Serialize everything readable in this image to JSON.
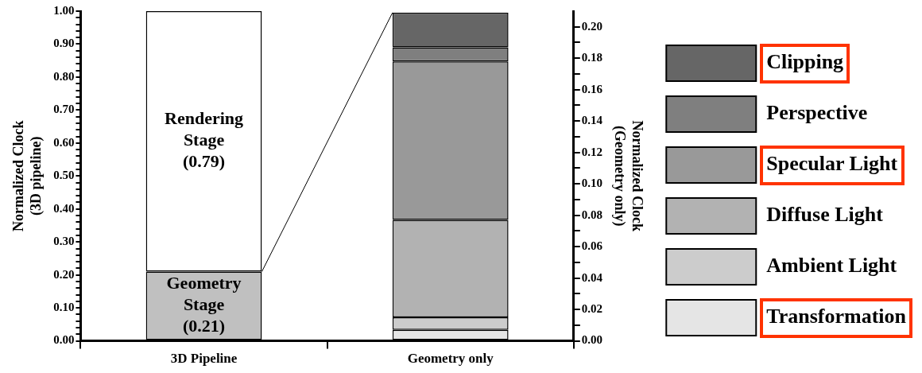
{
  "chart_data": {
    "type": "bar",
    "stacked": true,
    "legend": "right",
    "categories": [
      "3D Pipeline",
      "Geometry only"
    ],
    "ylabel": "Normalized Clock\n(3D pipeline)",
    "y2label": "Normalized Clock\n(Geometry only)",
    "ylim": [
      0,
      1
    ],
    "y2lim": [
      0,
      0.21
    ],
    "yticks": [
      {
        "value": 0,
        "label": "0.00"
      },
      {
        "value": 0.02,
        "label": null
      },
      {
        "value": 0.04,
        "label": null
      },
      {
        "value": 0.06,
        "label": null
      },
      {
        "value": 0.08,
        "label": null
      },
      {
        "value": 0.1,
        "label": "0.10"
      },
      {
        "value": 0.12,
        "label": null
      },
      {
        "value": 0.14,
        "label": null
      },
      {
        "value": 0.16,
        "label": null
      },
      {
        "value": 0.18,
        "label": null
      },
      {
        "value": 0.2,
        "label": "0.20"
      },
      {
        "value": 0.22,
        "label": null
      },
      {
        "value": 0.24,
        "label": null
      },
      {
        "value": 0.26,
        "label": null
      },
      {
        "value": 0.28,
        "label": null
      },
      {
        "value": 0.3,
        "label": "0.30"
      },
      {
        "value": 0.32,
        "label": null
      },
      {
        "value": 0.34,
        "label": null
      },
      {
        "value": 0.36,
        "label": null
      },
      {
        "value": 0.38,
        "label": null
      },
      {
        "value": 0.4,
        "label": "0.40"
      },
      {
        "value": 0.42,
        "label": null
      },
      {
        "value": 0.44,
        "label": null
      },
      {
        "value": 0.46,
        "label": null
      },
      {
        "value": 0.48,
        "label": null
      },
      {
        "value": 0.5,
        "label": "0.50"
      },
      {
        "value": 0.52,
        "label": null
      },
      {
        "value": 0.54,
        "label": null
      },
      {
        "value": 0.56,
        "label": null
      },
      {
        "value": 0.58,
        "label": null
      },
      {
        "value": 0.6,
        "label": "0.60"
      },
      {
        "value": 0.62,
        "label": null
      },
      {
        "value": 0.64,
        "label": null
      },
      {
        "value": 0.66,
        "label": null
      },
      {
        "value": 0.68,
        "label": null
      },
      {
        "value": 0.7,
        "label": "0.70"
      },
      {
        "value": 0.72,
        "label": null
      },
      {
        "value": 0.74,
        "label": null
      },
      {
        "value": 0.76,
        "label": null
      },
      {
        "value": 0.78,
        "label": null
      },
      {
        "value": 0.8,
        "label": "0.80"
      },
      {
        "value": 0.82,
        "label": null
      },
      {
        "value": 0.84,
        "label": null
      },
      {
        "value": 0.86,
        "label": null
      },
      {
        "value": 0.88,
        "label": null
      },
      {
        "value": 0.9,
        "label": "0.90"
      },
      {
        "value": 0.92,
        "label": null
      },
      {
        "value": 0.94,
        "label": null
      },
      {
        "value": 0.96,
        "label": null
      },
      {
        "value": 0.98,
        "label": null
      },
      {
        "value": 1,
        "label": "1.00"
      }
    ],
    "y2ticks": [
      {
        "value": 0,
        "label": "0.00"
      },
      {
        "value": 0.01,
        "label": null
      },
      {
        "value": 0.02,
        "label": "0.02"
      },
      {
        "value": 0.03,
        "label": null
      },
      {
        "value": 0.04,
        "label": "0.04"
      },
      {
        "value": 0.05,
        "label": null
      },
      {
        "value": 0.06,
        "label": "0.06"
      },
      {
        "value": 0.07,
        "label": null
      },
      {
        "value": 0.08,
        "label": "0.08"
      },
      {
        "value": 0.09,
        "label": null
      },
      {
        "value": 0.1,
        "label": "0.10"
      },
      {
        "value": 0.11,
        "label": null
      },
      {
        "value": 0.12,
        "label": "0.12"
      },
      {
        "value": 0.13,
        "label": null
      },
      {
        "value": 0.14,
        "label": "0.14"
      },
      {
        "value": 0.15,
        "label": null
      },
      {
        "value": 0.16,
        "label": "0.16"
      },
      {
        "value": 0.17,
        "label": null
      },
      {
        "value": 0.18,
        "label": "0.18"
      },
      {
        "value": 0.19,
        "label": null
      },
      {
        "value": 0.2,
        "label": "0.20"
      }
    ],
    "series": [
      {
        "name": "Geometry Stage",
        "color": "#c0c0c0",
        "values": [
          0.21,
          null
        ],
        "value_labels": [
          "(0.21)",
          null
        ]
      },
      {
        "name": "Rendering Stage",
        "color": "#ffffff",
        "values": [
          0.79,
          null
        ],
        "value_labels": [
          "(0.79)",
          null
        ]
      },
      {
        "name": "Transformation",
        "color": "#e5e5e5",
        "axis": "y2",
        "values": [
          null,
          0.007
        ]
      },
      {
        "name": "Ambient Light",
        "color": "#cccccc",
        "axis": "y2",
        "values": [
          null,
          0.008
        ]
      },
      {
        "name": "Diffuse Light",
        "color": "#b2b2b2",
        "axis": "y2",
        "values": [
          null,
          0.062
        ]
      },
      {
        "name": "Specular Light",
        "color": "#999999",
        "axis": "y2",
        "values": [
          null,
          0.101
        ]
      },
      {
        "name": "Perspective",
        "color": "#7f7f7f",
        "axis": "y2",
        "values": [
          null,
          0.009
        ]
      },
      {
        "name": "Clipping",
        "color": "#666666",
        "axis": "y2",
        "values": [
          null,
          0.022
        ]
      }
    ]
  }
}
